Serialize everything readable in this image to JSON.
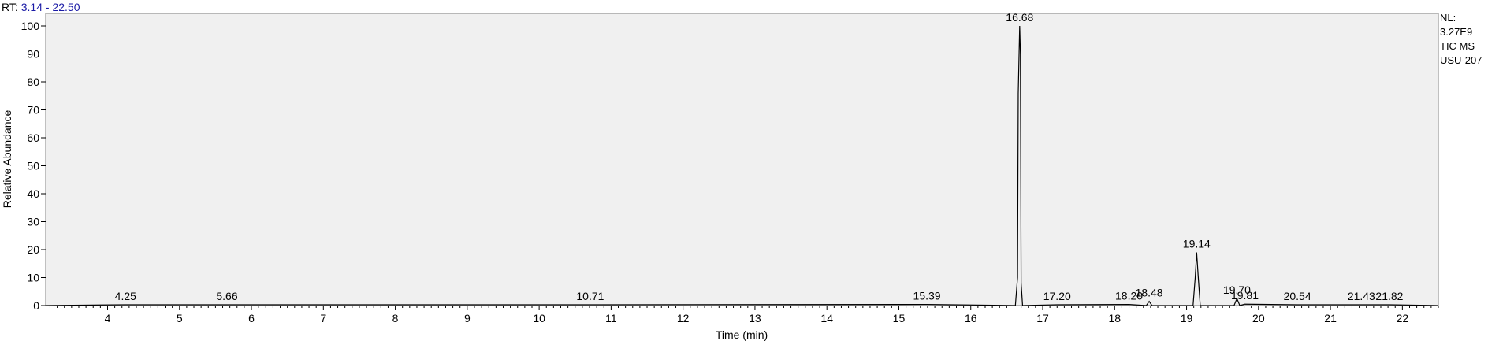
{
  "chart_data": {
    "type": "line",
    "rt_prefix": "RT:",
    "rt_range": "3.14 - 22.50",
    "xlabel": "Time (min)",
    "ylabel": "Relative Abundance",
    "xlim": [
      3.14,
      22.5
    ],
    "ylim": [
      0,
      100
    ],
    "x_ticks": [
      4,
      5,
      6,
      7,
      8,
      9,
      10,
      11,
      12,
      13,
      14,
      15,
      16,
      17,
      18,
      19,
      20,
      21,
      22
    ],
    "y_ticks": [
      0,
      10,
      20,
      30,
      40,
      50,
      60,
      70,
      80,
      90,
      100
    ],
    "info_lines": [
      "NL:",
      "3.27E9",
      "TIC  MS",
      "USU-207"
    ],
    "grid": false,
    "series": [
      {
        "values": [
          [
            3.14,
            0
          ],
          [
            4.25,
            0.3
          ],
          [
            5.66,
            0.3
          ],
          [
            10.71,
            0.3
          ],
          [
            15.39,
            0.4
          ],
          [
            16.62,
            0
          ],
          [
            16.65,
            10
          ],
          [
            16.66,
            76
          ],
          [
            16.68,
            100
          ],
          [
            16.69,
            90
          ],
          [
            16.7,
            8
          ],
          [
            16.72,
            0
          ],
          [
            17.2,
            0.3
          ],
          [
            18.2,
            0.4
          ],
          [
            18.44,
            0
          ],
          [
            18.48,
            1.5
          ],
          [
            18.52,
            0
          ],
          [
            19.09,
            0
          ],
          [
            19.12,
            10
          ],
          [
            19.14,
            19
          ],
          [
            19.16,
            11
          ],
          [
            19.19,
            0
          ],
          [
            19.66,
            0
          ],
          [
            19.7,
            2.5
          ],
          [
            19.74,
            0
          ],
          [
            19.81,
            0.5
          ],
          [
            20.54,
            0.3
          ],
          [
            21.43,
            0.3
          ],
          [
            21.82,
            0.3
          ],
          [
            22.5,
            0
          ]
        ]
      }
    ],
    "peak_labels": [
      {
        "x": 4.25,
        "y": 0.3,
        "label": "4.25"
      },
      {
        "x": 5.66,
        "y": 0.3,
        "label": "5.66"
      },
      {
        "x": 10.71,
        "y": 0.3,
        "label": "10.71"
      },
      {
        "x": 15.39,
        "y": 0.4,
        "label": "15.39"
      },
      {
        "x": 16.68,
        "y": 100,
        "label": "16.68"
      },
      {
        "x": 17.2,
        "y": 0.3,
        "label": "17.20"
      },
      {
        "x": 18.2,
        "y": 0.4,
        "label": "18.20"
      },
      {
        "x": 18.48,
        "y": 1.5,
        "label": "18.48"
      },
      {
        "x": 19.14,
        "y": 19,
        "label": "19.14"
      },
      {
        "x": 19.7,
        "y": 2.5,
        "label": "19.70"
      },
      {
        "x": 19.81,
        "y": 0.5,
        "label": "19.81"
      },
      {
        "x": 20.54,
        "y": 0.3,
        "label": "20.54"
      },
      {
        "x": 21.43,
        "y": 0.3,
        "label": "21.43"
      },
      {
        "x": 21.82,
        "y": 0.3,
        "label": "21.82"
      }
    ],
    "colors": {
      "plot_background": "#f0f0f0",
      "frame": "#808080",
      "trace": "#000000",
      "rt_value": "#1a1aa6",
      "text": "#000000"
    }
  }
}
